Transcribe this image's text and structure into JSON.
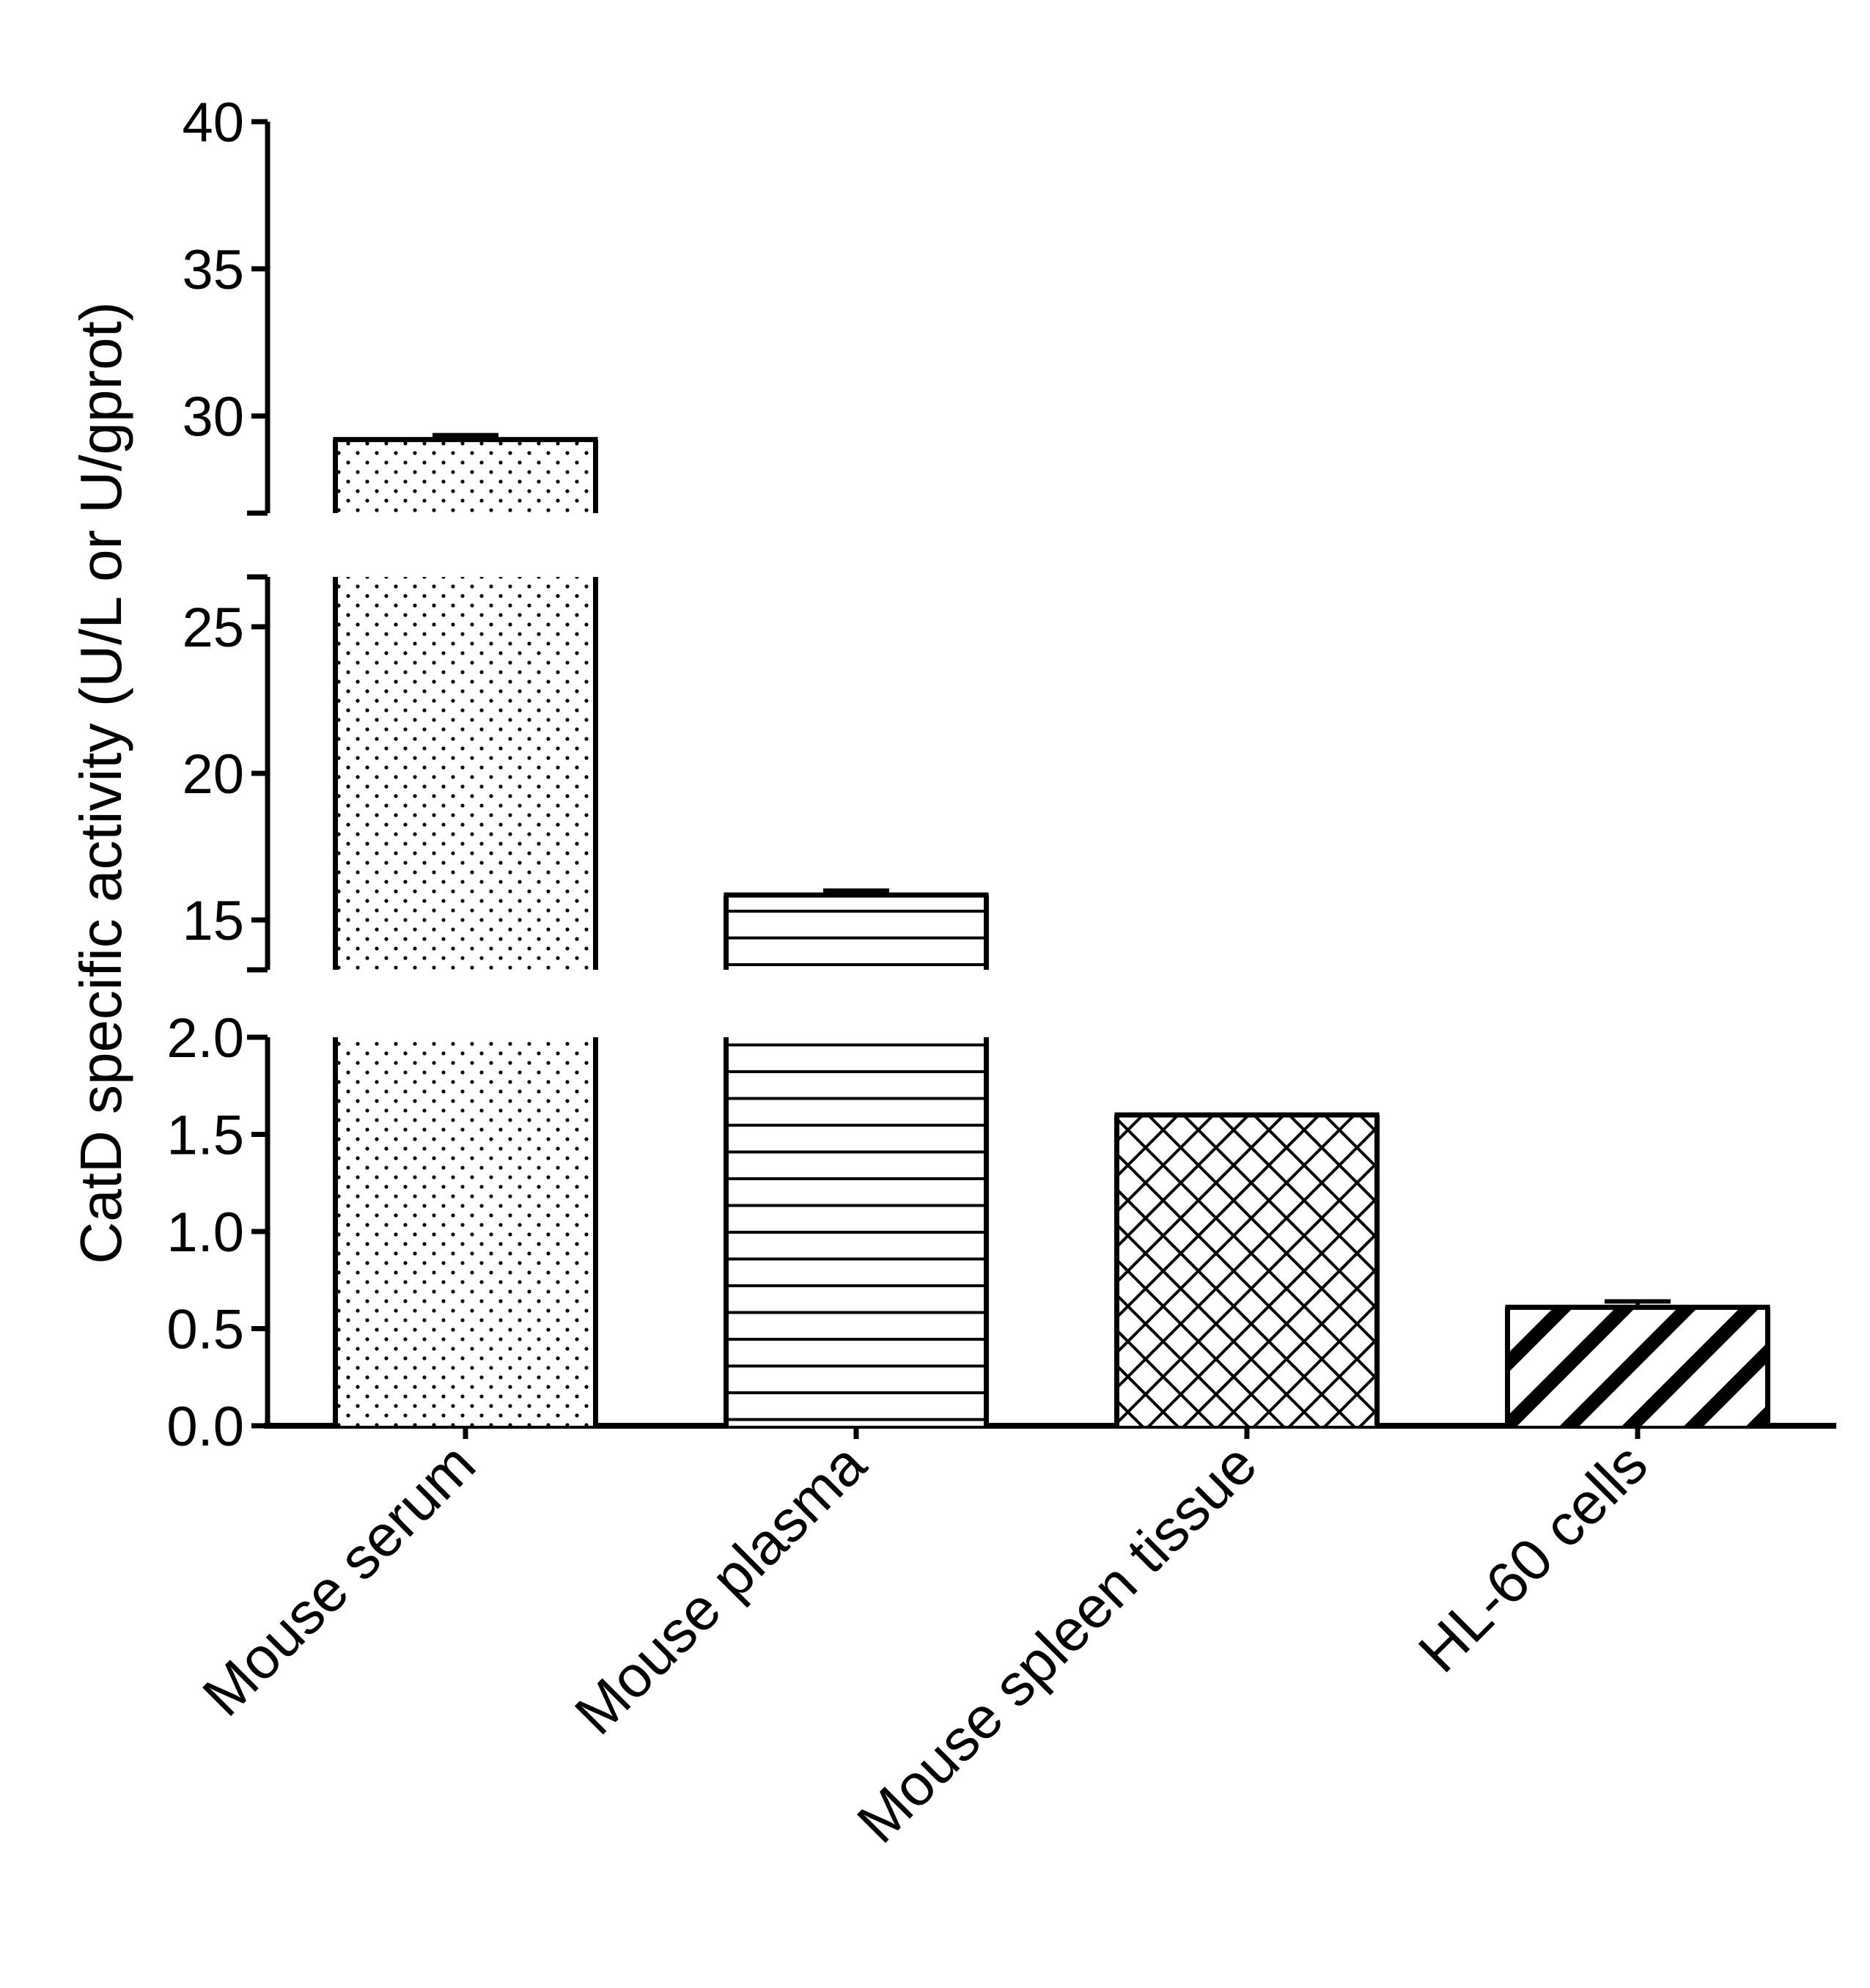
{
  "chart_data": {
    "type": "bar",
    "title": "",
    "xlabel": "",
    "ylabel": "CatD specific activity (U/L or U/gprot)",
    "categories": [
      "Mouse serum",
      "Mouse plasma",
      "Mouse spleen tissue",
      "HL-60 cells"
    ],
    "series": [
      {
        "values": [
          29.2,
          15.85,
          1.6,
          0.61
        ],
        "errors": [
          0.15,
          0.15,
          0.0,
          0.03
        ],
        "patterns": [
          "dots",
          "horizontal-lines",
          "crosshatch",
          "diagonal-stripes"
        ]
      }
    ],
    "y_axis_breaks": true,
    "segments": [
      {
        "ylim": [
          0,
          2.0
        ],
        "ticks": [
          "0.0",
          "0.5",
          "1.0",
          "1.5",
          "2.0"
        ]
      },
      {
        "ylim": [
          13.3,
          26.7
        ],
        "ticks": [
          "15",
          "20",
          "25"
        ]
      },
      {
        "ylim": [
          26.7,
          40
        ],
        "ticks": [
          "30",
          "35",
          "40"
        ]
      }
    ],
    "grid": false,
    "legend": "none",
    "colors": {
      "stroke": "#000000",
      "fill": "#ffffff"
    }
  }
}
